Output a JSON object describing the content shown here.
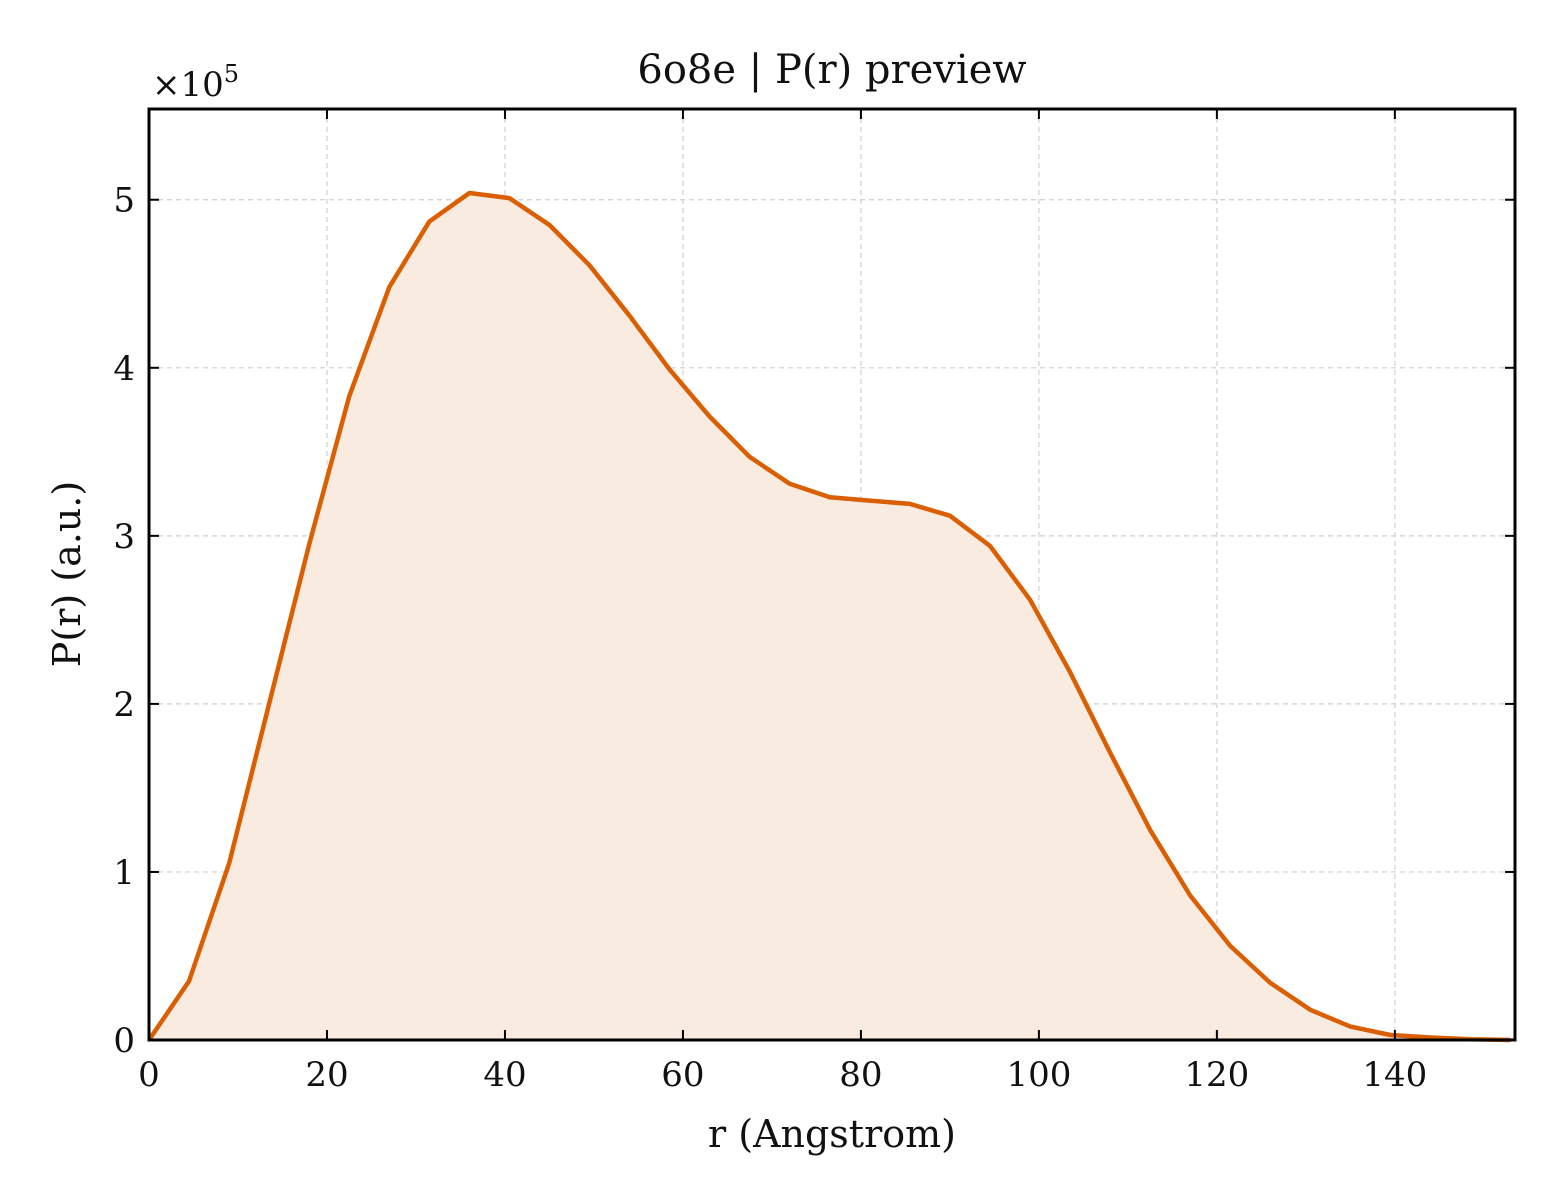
{
  "chart_data": {
    "type": "area",
    "title": "6o8e | P(r) preview",
    "xlabel": "r (Angstrom)",
    "ylabel": "P(r) (a.u.)",
    "y_multiplier_label": "×10",
    "y_multiplier_exponent": "5",
    "xlim": [
      0,
      153.5
    ],
    "ylim": [
      0,
      5.54
    ],
    "x_ticks": [
      0,
      20,
      40,
      60,
      80,
      100,
      120,
      140
    ],
    "x_tick_labels": [
      "0",
      "20",
      "40",
      "60",
      "80",
      "100",
      "120",
      "140"
    ],
    "y_ticks": [
      0,
      1,
      2,
      3,
      4,
      5
    ],
    "y_tick_labels": [
      "0",
      "1",
      "2",
      "3",
      "4",
      "5"
    ],
    "grid": true,
    "line_color": "#d95f02",
    "fill_color": "#f9ebe0",
    "series": [
      {
        "x": [
          0,
          4.5,
          9.0,
          13.5,
          18.0,
          22.5,
          27.0,
          31.5,
          36.0,
          40.5,
          45.0,
          49.5,
          54.0,
          58.5,
          63.0,
          67.5,
          72.0,
          76.5,
          81.0,
          85.5,
          90.0,
          94.5,
          99.0,
          103.5,
          108.0,
          112.5,
          117.0,
          121.5,
          126.0,
          130.5,
          135.0,
          139.5,
          144.0,
          148.5,
          153.0
        ],
        "y": [
          0,
          0.35,
          1.05,
          2.0,
          2.95,
          3.83,
          4.48,
          4.87,
          5.04,
          5.01,
          4.85,
          4.61,
          4.31,
          3.99,
          3.71,
          3.47,
          3.31,
          3.23,
          3.21,
          3.19,
          3.12,
          2.94,
          2.62,
          2.19,
          1.71,
          1.25,
          0.86,
          0.56,
          0.34,
          0.18,
          0.08,
          0.03,
          0.015,
          0.005,
          0.0
        ]
      }
    ]
  }
}
